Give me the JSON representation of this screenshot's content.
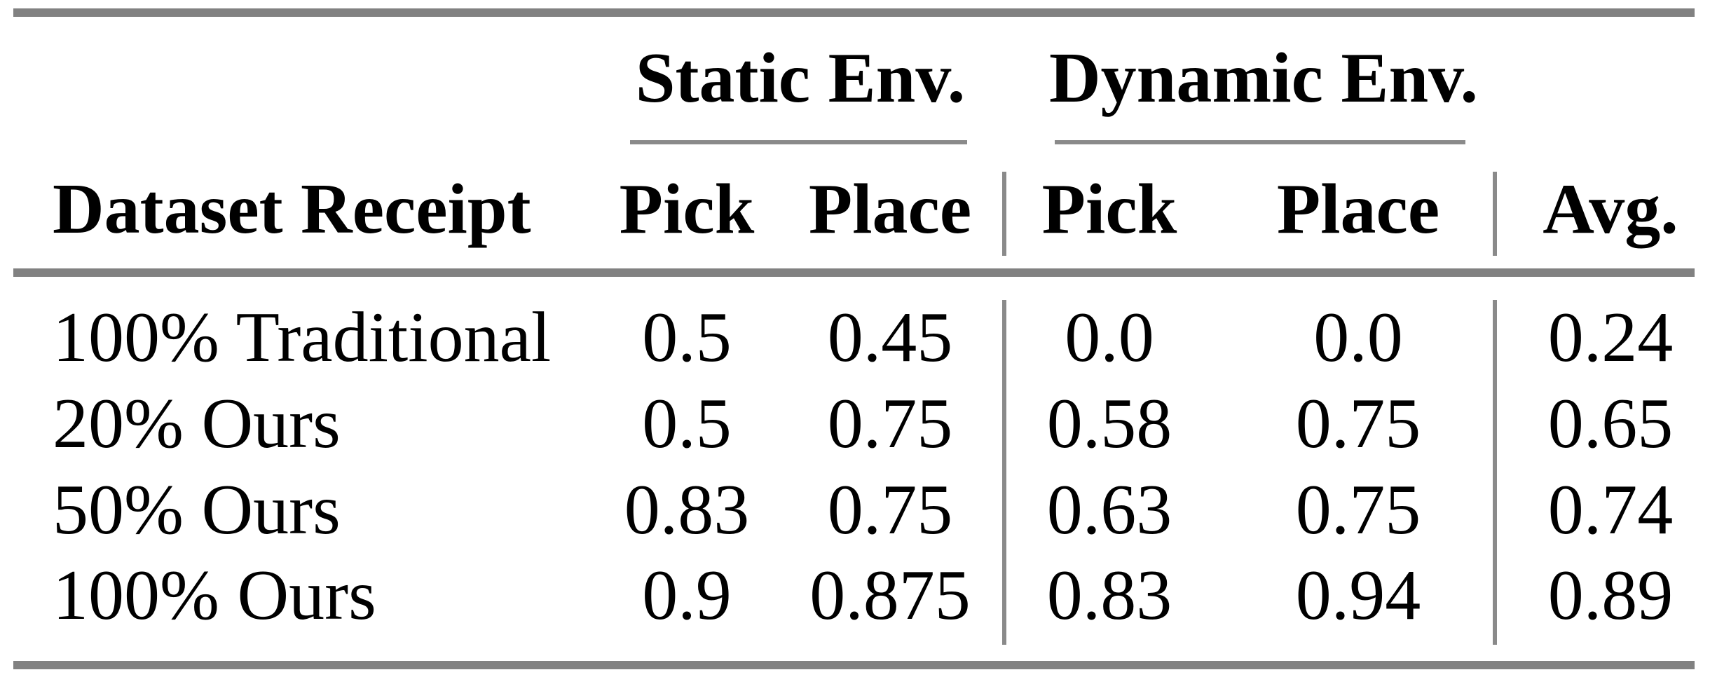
{
  "table": {
    "group_headers": {
      "static": "Static Env.",
      "dynamic": "Dynamic Env."
    },
    "columns": {
      "dataset": "Dataset Receipt",
      "static_pick": "Pick",
      "static_place": "Place",
      "dynamic_pick": "Pick",
      "dynamic_place": "Place",
      "avg": "Avg."
    },
    "rows": [
      {
        "label": "100% Traditional",
        "static_pick": "0.5",
        "static_place": "0.45",
        "dynamic_pick": "0.0",
        "dynamic_place": "0.0",
        "avg": "0.24"
      },
      {
        "label": "20% Ours",
        "static_pick": "0.5",
        "static_place": "0.75",
        "dynamic_pick": "0.58",
        "dynamic_place": "0.75",
        "avg": "0.65"
      },
      {
        "label": "50% Ours",
        "static_pick": "0.83",
        "static_place": "0.75",
        "dynamic_pick": "0.63",
        "dynamic_place": "0.75",
        "avg": "0.74"
      },
      {
        "label": "100% Ours",
        "static_pick": "0.9",
        "static_place": "0.875",
        "dynamic_pick": "0.83",
        "dynamic_place": "0.94",
        "avg": "0.89"
      }
    ],
    "colors": {
      "rule_thick": "#818181",
      "rule_thin": "#8a8a8a",
      "text": "#000000",
      "background": "#ffffff"
    }
  },
  "chart_data": {
    "type": "table",
    "title": "",
    "column_groups": [
      "",
      "Static Env.",
      "Static Env.",
      "Dynamic Env.",
      "Dynamic Env.",
      ""
    ],
    "columns": [
      "Dataset Receipt",
      "Pick",
      "Place",
      "Pick",
      "Place",
      "Avg."
    ],
    "rows": [
      [
        "100% Traditional",
        0.5,
        0.45,
        0.0,
        0.0,
        0.24
      ],
      [
        "20% Ours",
        0.5,
        0.75,
        0.58,
        0.75,
        0.65
      ],
      [
        "50% Ours",
        0.83,
        0.75,
        0.63,
        0.75,
        0.74
      ],
      [
        "100% Ours",
        0.9,
        0.875,
        0.83,
        0.94,
        0.89
      ]
    ]
  }
}
